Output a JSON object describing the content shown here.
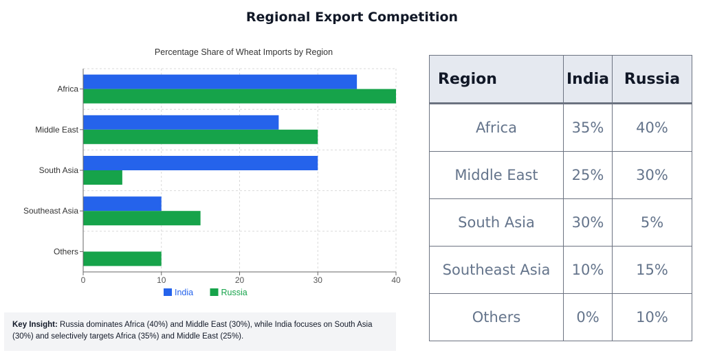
{
  "page": {
    "title": "Regional Export Competition"
  },
  "chart_data": {
    "type": "bar",
    "orientation": "horizontal",
    "title": "Percentage Share of Wheat Imports by Region",
    "categories": [
      "Africa",
      "Middle East",
      "South Asia",
      "Southeast Asia",
      "Others"
    ],
    "series": [
      {
        "name": "India",
        "values": [
          35,
          25,
          30,
          10,
          0
        ],
        "color": "#2563eb"
      },
      {
        "name": "Russia",
        "values": [
          40,
          30,
          5,
          15,
          10
        ],
        "color": "#16a34a"
      }
    ],
    "xlim": [
      0,
      40
    ],
    "xticks": [
      "0",
      "10",
      "20",
      "30",
      "40"
    ],
    "grid": true,
    "legend": "bottom"
  },
  "insight": {
    "label": "Key Insight:",
    "text": "Russia dominates Africa (40%) and Middle East (30%), while India focuses on South Asia (30%) and selectively targets Africa (35%) and Middle East (25%)."
  },
  "table": {
    "headers": [
      "Region",
      "India",
      "Russia"
    ],
    "rows": [
      [
        "Africa",
        "35%",
        "40%"
      ],
      [
        "Middle East",
        "25%",
        "30%"
      ],
      [
        "South Asia",
        "30%",
        "5%"
      ],
      [
        "Southeast Asia",
        "10%",
        "15%"
      ],
      [
        "Others",
        "0%",
        "10%"
      ]
    ]
  }
}
